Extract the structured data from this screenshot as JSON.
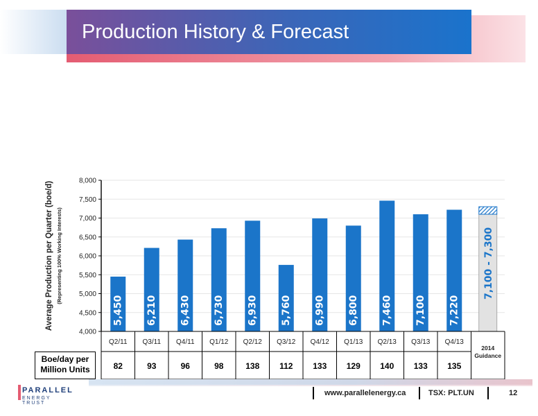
{
  "title": "Production History & Forecast",
  "chart_data": {
    "type": "bar",
    "ylabel": "Average Production per Quarter (boe/d)",
    "ylabel_sub": "(Representing 100% Working Interests)",
    "ylim": [
      4000,
      8000
    ],
    "yticks": [
      "4,000",
      "4,500",
      "5,000",
      "5,500",
      "6,000",
      "6,500",
      "7,000",
      "7,500",
      "8,000"
    ],
    "categories": [
      "Q2/11",
      "Q3/11",
      "Q4/11",
      "Q1/12",
      "Q2/12",
      "Q3/12",
      "Q4/12",
      "Q1/13",
      "Q2/13",
      "Q3/13",
      "Q4/13"
    ],
    "values": [
      5450,
      6210,
      6430,
      6730,
      6930,
      5760,
      6990,
      6800,
      7460,
      7100,
      7220
    ],
    "value_labels": [
      "5,450",
      "6,210",
      "6,430",
      "6,730",
      "6,930",
      "5,760",
      "6,990",
      "6,800",
      "7,460",
      "7,100",
      "7,220"
    ],
    "guidance": {
      "category": "2014 Guidance",
      "low": 7100,
      "high": 7300,
      "label": "7,100 - 7,300"
    },
    "bar_color": "#1b75c9",
    "guidance_color": "#e2e2e2",
    "grid": true
  },
  "table": {
    "row_label": "Boe/day per Million Units",
    "values": [
      "82",
      "93",
      "96",
      "98",
      "138",
      "112",
      "133",
      "129",
      "140",
      "133",
      "135"
    ]
  },
  "logo": {
    "name": "PARALLEL",
    "tagline": "ENERGY TRUST"
  },
  "footer": {
    "website": "www.parallelenergy.ca",
    "ticker": "TSX: PLT.UN",
    "page": "12"
  }
}
